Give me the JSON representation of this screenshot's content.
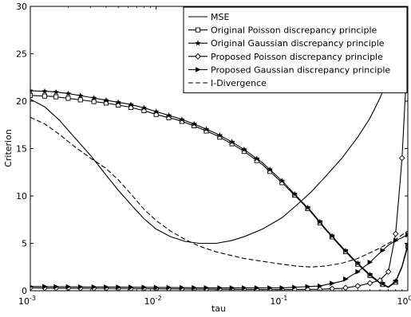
{
  "chart_data": {
    "type": "line",
    "xscale": "log",
    "xlim": [
      0.001,
      1
    ],
    "ylim": [
      0,
      30
    ],
    "xlabel": "tau",
    "ylabel": "Criterion",
    "grid": false,
    "legend_placement": "top-right",
    "x_ticks": [
      {
        "value": 0.001,
        "base": "10",
        "exp": "-3"
      },
      {
        "value": 0.01,
        "base": "10",
        "exp": "-2"
      },
      {
        "value": 0.1,
        "base": "10",
        "exp": "-1"
      },
      {
        "value": 1,
        "base": "10",
        "exp": "0"
      }
    ],
    "y_ticks": [
      {
        "value": 0,
        "label": "0"
      },
      {
        "value": 5,
        "label": "5"
      },
      {
        "value": 10,
        "label": "10"
      },
      {
        "value": 15,
        "label": "15"
      },
      {
        "value": 20,
        "label": "20"
      },
      {
        "value": 25,
        "label": "25"
      },
      {
        "value": 30,
        "label": "30"
      }
    ],
    "series": [
      {
        "name": "MSE",
        "dash": "solid",
        "marker": "none",
        "points": [
          [
            0.001,
            20.2
          ],
          [
            0.0013,
            19.4
          ],
          [
            0.0017,
            18.0
          ],
          [
            0.0022,
            16.3
          ],
          [
            0.003,
            14.3
          ],
          [
            0.004,
            12.2
          ],
          [
            0.005,
            10.6
          ],
          [
            0.0065,
            8.9
          ],
          [
            0.008,
            7.6
          ],
          [
            0.01,
            6.5
          ],
          [
            0.013,
            5.7
          ],
          [
            0.017,
            5.2
          ],
          [
            0.022,
            5.0
          ],
          [
            0.03,
            5.0
          ],
          [
            0.04,
            5.3
          ],
          [
            0.05,
            5.7
          ],
          [
            0.07,
            6.5
          ],
          [
            0.1,
            7.7
          ],
          [
            0.13,
            9.0
          ],
          [
            0.17,
            10.4
          ],
          [
            0.22,
            12.0
          ],
          [
            0.3,
            14.0
          ],
          [
            0.4,
            16.2
          ],
          [
            0.5,
            18.2
          ],
          [
            0.6,
            20.3
          ],
          [
            0.7,
            22.5
          ],
          [
            0.8,
            24.8
          ],
          [
            0.9,
            26.9
          ],
          [
            1.0,
            29.3
          ]
        ]
      },
      {
        "name": "Original Poisson discrepancy principle",
        "dash": "solid",
        "marker": "square",
        "points": [
          [
            0.001,
            20.6
          ],
          [
            0.0015,
            20.5
          ],
          [
            0.002,
            20.3
          ],
          [
            0.003,
            20.0
          ],
          [
            0.004,
            19.8
          ],
          [
            0.006,
            19.4
          ],
          [
            0.008,
            19.0
          ],
          [
            0.01,
            18.6
          ],
          [
            0.015,
            18.0
          ],
          [
            0.02,
            17.4
          ],
          [
            0.03,
            16.4
          ],
          [
            0.04,
            15.5
          ],
          [
            0.05,
            14.7
          ],
          [
            0.07,
            13.3
          ],
          [
            0.1,
            11.4
          ],
          [
            0.13,
            9.9
          ],
          [
            0.17,
            8.3
          ],
          [
            0.22,
            6.5
          ],
          [
            0.3,
            4.5
          ],
          [
            0.4,
            2.8
          ],
          [
            0.5,
            1.6
          ],
          [
            0.6,
            0.8
          ],
          [
            0.7,
            0.35
          ],
          [
            0.8,
            0.9
          ],
          [
            0.9,
            2.5
          ],
          [
            1.0,
            4.7
          ]
        ],
        "marker_x": [
          0.001,
          0.0013,
          0.0016,
          0.002,
          0.0025,
          0.0032,
          0.004,
          0.005,
          0.0063,
          0.008,
          0.01,
          0.0126,
          0.016,
          0.02,
          0.025,
          0.032,
          0.04,
          0.05,
          0.063,
          0.08,
          0.1,
          0.126,
          0.16,
          0.2,
          0.25,
          0.32,
          0.4,
          0.5,
          0.63,
          0.8,
          1.0
        ]
      },
      {
        "name": "Original Gaussian discrepancy principle",
        "dash": "solid",
        "marker": "star",
        "points": [
          [
            0.001,
            21.1
          ],
          [
            0.0015,
            21.0
          ],
          [
            0.002,
            20.8
          ],
          [
            0.003,
            20.4
          ],
          [
            0.004,
            20.1
          ],
          [
            0.006,
            19.7
          ],
          [
            0.008,
            19.3
          ],
          [
            0.01,
            18.9
          ],
          [
            0.015,
            18.2
          ],
          [
            0.02,
            17.6
          ],
          [
            0.03,
            16.6
          ],
          [
            0.04,
            15.7
          ],
          [
            0.05,
            14.9
          ],
          [
            0.07,
            13.5
          ],
          [
            0.1,
            11.6
          ],
          [
            0.13,
            10.0
          ],
          [
            0.17,
            8.4
          ],
          [
            0.22,
            6.6
          ],
          [
            0.3,
            4.6
          ],
          [
            0.4,
            2.9
          ],
          [
            0.5,
            1.7
          ],
          [
            0.6,
            0.9
          ],
          [
            0.7,
            0.4
          ],
          [
            0.8,
            1.0
          ],
          [
            0.9,
            2.6
          ],
          [
            1.0,
            4.9
          ]
        ],
        "marker_x": [
          0.001,
          0.0013,
          0.0016,
          0.002,
          0.0025,
          0.0032,
          0.004,
          0.005,
          0.0063,
          0.008,
          0.01,
          0.0126,
          0.016,
          0.02,
          0.025,
          0.032,
          0.04,
          0.05,
          0.063,
          0.08,
          0.1,
          0.126,
          0.16,
          0.2,
          0.25,
          0.32,
          0.4,
          0.5,
          0.63,
          0.8,
          1.0
        ]
      },
      {
        "name": "Proposed Poisson discrepancy principle",
        "dash": "solid",
        "marker": "diamond",
        "points": [
          [
            0.001,
            0.3
          ],
          [
            0.003,
            0.25
          ],
          [
            0.01,
            0.2
          ],
          [
            0.03,
            0.15
          ],
          [
            0.1,
            0.12
          ],
          [
            0.2,
            0.15
          ],
          [
            0.3,
            0.25
          ],
          [
            0.4,
            0.5
          ],
          [
            0.5,
            0.8
          ],
          [
            0.6,
            1.1
          ],
          [
            0.7,
            2.0
          ],
          [
            0.8,
            6.0
          ],
          [
            0.85,
            10.0
          ],
          [
            0.9,
            14.0
          ],
          [
            0.95,
            20.0
          ],
          [
            1.0,
            26.2
          ]
        ],
        "marker_x": [
          0.001,
          0.0013,
          0.0016,
          0.002,
          0.0025,
          0.0032,
          0.004,
          0.005,
          0.0063,
          0.008,
          0.01,
          0.0126,
          0.016,
          0.02,
          0.025,
          0.032,
          0.04,
          0.05,
          0.063,
          0.08,
          0.1,
          0.126,
          0.16,
          0.2,
          0.25,
          0.32,
          0.4,
          0.5,
          0.6,
          0.7,
          0.8,
          0.9,
          1.0
        ]
      },
      {
        "name": "Proposed Gaussian discrepancy principle",
        "dash": "solid",
        "marker": "triangle-right",
        "points": [
          [
            0.001,
            0.45
          ],
          [
            0.003,
            0.4
          ],
          [
            0.01,
            0.35
          ],
          [
            0.03,
            0.3
          ],
          [
            0.1,
            0.3
          ],
          [
            0.2,
            0.5
          ],
          [
            0.3,
            1.0
          ],
          [
            0.4,
            2.0
          ],
          [
            0.5,
            3.0
          ],
          [
            0.6,
            4.0
          ],
          [
            0.7,
            4.8
          ],
          [
            0.8,
            5.3
          ],
          [
            0.9,
            5.6
          ],
          [
            1.0,
            5.9
          ]
        ],
        "marker_x": [
          0.001,
          0.0013,
          0.0016,
          0.002,
          0.0025,
          0.0032,
          0.004,
          0.005,
          0.0063,
          0.008,
          0.01,
          0.0126,
          0.016,
          0.02,
          0.025,
          0.032,
          0.04,
          0.05,
          0.063,
          0.08,
          0.1,
          0.126,
          0.16,
          0.2,
          0.25,
          0.32,
          0.4,
          0.5,
          0.63,
          0.8,
          1.0
        ]
      },
      {
        "name": "I-Divergence",
        "dash": "dashed",
        "marker": "none",
        "points": [
          [
            0.001,
            18.3
          ],
          [
            0.0013,
            17.6
          ],
          [
            0.0017,
            16.5
          ],
          [
            0.0022,
            15.3
          ],
          [
            0.003,
            14.0
          ],
          [
            0.004,
            12.9
          ],
          [
            0.005,
            11.7
          ],
          [
            0.0065,
            10.0
          ],
          [
            0.008,
            8.6
          ],
          [
            0.01,
            7.4
          ],
          [
            0.013,
            6.3
          ],
          [
            0.017,
            5.4
          ],
          [
            0.022,
            4.7
          ],
          [
            0.03,
            4.1
          ],
          [
            0.04,
            3.7
          ],
          [
            0.05,
            3.4
          ],
          [
            0.07,
            3.1
          ],
          [
            0.1,
            2.8
          ],
          [
            0.13,
            2.6
          ],
          [
            0.17,
            2.5
          ],
          [
            0.22,
            2.6
          ],
          [
            0.3,
            2.9
          ],
          [
            0.4,
            3.4
          ],
          [
            0.5,
            4.0
          ],
          [
            0.6,
            4.5
          ],
          [
            0.7,
            5.0
          ],
          [
            0.8,
            5.4
          ],
          [
            0.9,
            5.9
          ],
          [
            1.0,
            6.3
          ]
        ]
      }
    ]
  }
}
